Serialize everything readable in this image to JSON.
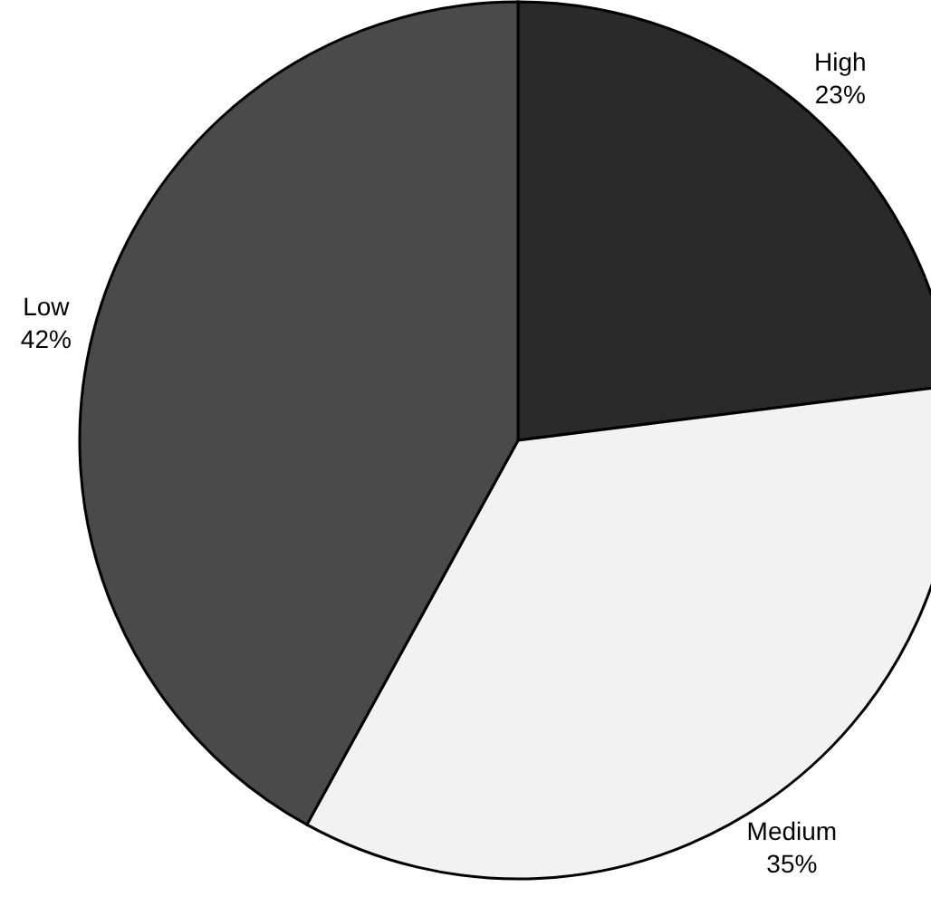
{
  "chart_data": {
    "type": "pie",
    "categories": [
      "High",
      "Medium",
      "Low"
    ],
    "values": [
      23,
      35,
      42
    ],
    "colors": [
      "#2a2a2a",
      "#f2f2f2",
      "#4a4a4a"
    ],
    "value_labels": [
      "23%",
      "35%",
      "42%"
    ],
    "legend": false
  }
}
